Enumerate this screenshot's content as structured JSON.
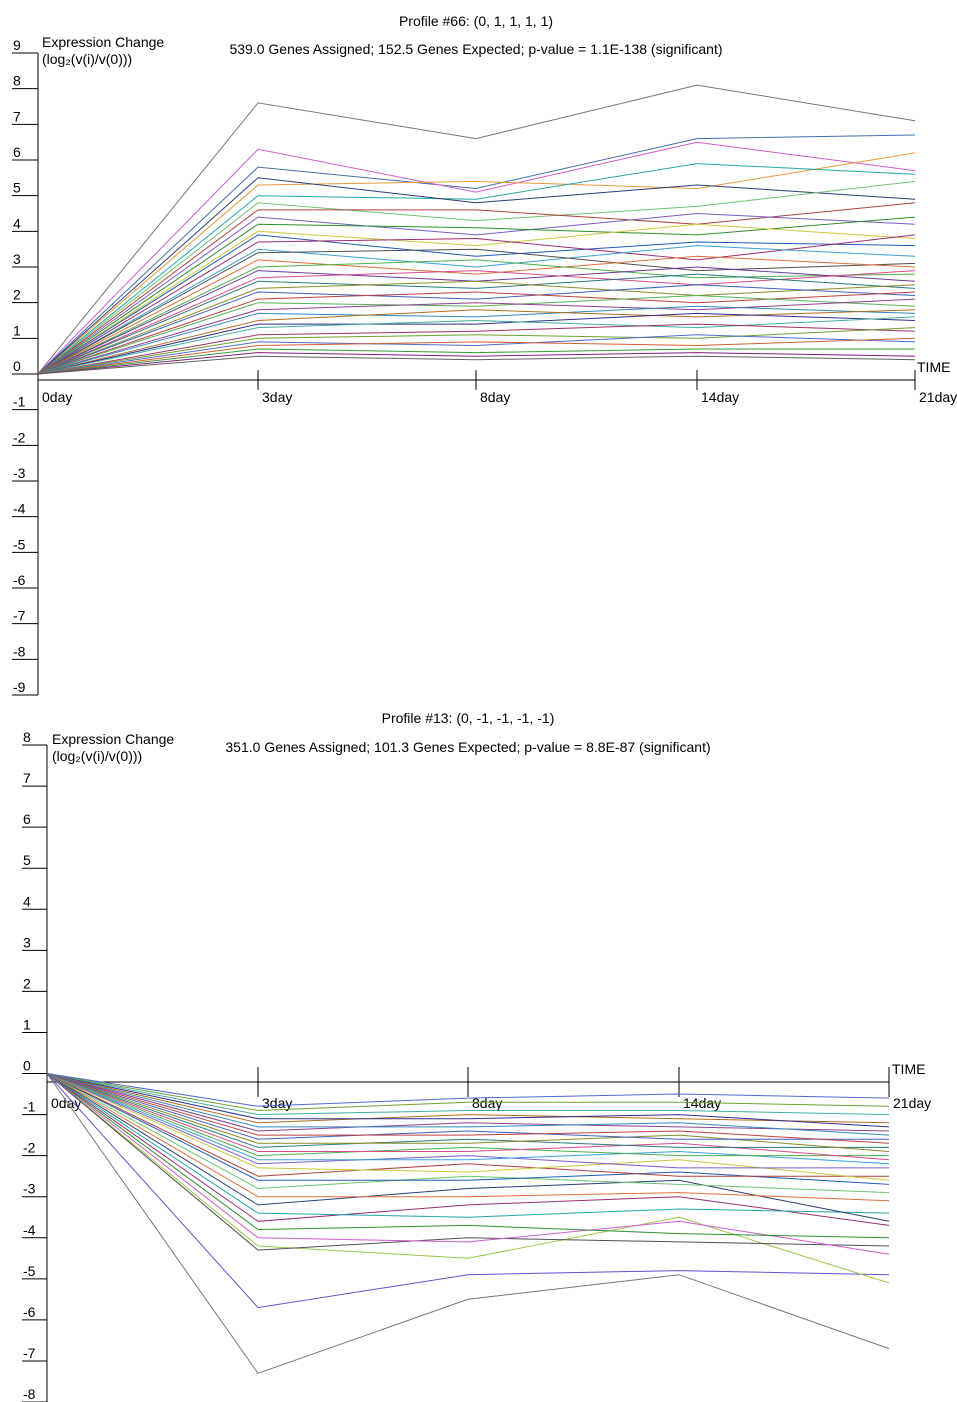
{
  "chart_data": [
    {
      "type": "line",
      "title": "Profile #66: (0, 1, 1, 1, 1)",
      "subtitle": "539.0 Genes Assigned; 152.5 Genes Expected; p-value = 1.1E-138 (significant)",
      "ylabel": "Expression Change",
      "ylabel_sub": "(log₂(v(i)/v(0)))",
      "xlabel": "TIME",
      "categories": [
        "0day",
        "3day",
        "8day",
        "14day",
        "21day"
      ],
      "ylim": [
        -9,
        9
      ],
      "yticks": [
        "-9",
        "-8",
        "-7",
        "-6",
        "-5",
        "-4",
        "-3",
        "-2",
        "-1",
        "0",
        "1",
        "2",
        "3",
        "4",
        "5",
        "6",
        "7",
        "8",
        "9"
      ],
      "profile": [
        0,
        1,
        1,
        1,
        1
      ],
      "genes_assigned": 539.0,
      "genes_expected": 152.5,
      "p_value": "1.1E-138",
      "series": [
        {
          "color": "#777777",
          "values": [
            0,
            7.6,
            6.6,
            8.1,
            7.1
          ]
        },
        {
          "color": "#3f6fae",
          "values": [
            0,
            5.8,
            5.2,
            6.6,
            6.7
          ]
        },
        {
          "color": "#d05bd0",
          "values": [
            0,
            6.3,
            5.1,
            6.5,
            5.7
          ]
        },
        {
          "color": "#e89a3a",
          "values": [
            0,
            5.3,
            5.4,
            5.2,
            6.2
          ]
        },
        {
          "color": "#22a6a6",
          "values": [
            0,
            5.0,
            4.9,
            5.9,
            5.6
          ]
        },
        {
          "color": "#2b3f7a",
          "values": [
            0,
            5.5,
            4.8,
            5.3,
            4.9
          ]
        },
        {
          "color": "#6ec46e",
          "values": [
            0,
            4.8,
            4.3,
            4.7,
            5.4
          ]
        },
        {
          "color": "#b04040",
          "values": [
            0,
            4.6,
            4.6,
            4.2,
            4.8
          ]
        },
        {
          "color": "#7a5cc8",
          "values": [
            0,
            4.4,
            3.9,
            4.5,
            4.2
          ]
        },
        {
          "color": "#2f8f2f",
          "values": [
            0,
            4.2,
            4.1,
            3.9,
            4.4
          ]
        },
        {
          "color": "#c8c83a",
          "values": [
            0,
            4.0,
            3.6,
            4.2,
            3.8
          ]
        },
        {
          "color": "#1e5bb8",
          "values": [
            0,
            3.9,
            3.3,
            3.7,
            3.6
          ]
        },
        {
          "color": "#9a2d6e",
          "values": [
            0,
            3.7,
            3.8,
            3.2,
            3.9
          ]
        },
        {
          "color": "#3aa0d8",
          "values": [
            0,
            3.5,
            3.0,
            3.6,
            3.3
          ]
        },
        {
          "color": "#505050",
          "values": [
            0,
            3.4,
            3.5,
            2.9,
            3.1
          ]
        },
        {
          "color": "#e0703a",
          "values": [
            0,
            3.2,
            2.8,
            3.3,
            3.0
          ]
        },
        {
          "color": "#4cb04c",
          "values": [
            0,
            3.0,
            3.2,
            2.7,
            2.8
          ]
        },
        {
          "color": "#6a3a9a",
          "values": [
            0,
            2.9,
            2.6,
            3.0,
            2.6
          ]
        },
        {
          "color": "#d84a8a",
          "values": [
            0,
            2.7,
            2.9,
            2.5,
            2.9
          ]
        },
        {
          "color": "#2a7a7a",
          "values": [
            0,
            2.6,
            2.4,
            2.8,
            2.4
          ]
        },
        {
          "color": "#8a8a2a",
          "values": [
            0,
            2.4,
            2.6,
            2.2,
            2.5
          ]
        },
        {
          "color": "#4060c0",
          "values": [
            0,
            2.3,
            2.1,
            2.5,
            2.2
          ]
        },
        {
          "color": "#c04040",
          "values": [
            0,
            2.1,
            2.3,
            2.0,
            2.3
          ]
        },
        {
          "color": "#5ab05a",
          "values": [
            0,
            2.0,
            1.9,
            2.2,
            1.9
          ]
        },
        {
          "color": "#904090",
          "values": [
            0,
            1.8,
            2.0,
            1.8,
            2.1
          ]
        },
        {
          "color": "#308ac0",
          "values": [
            0,
            1.7,
            1.6,
            1.9,
            1.7
          ]
        },
        {
          "color": "#b07020",
          "values": [
            0,
            1.5,
            1.8,
            1.6,
            1.8
          ]
        },
        {
          "color": "#2f2f8f",
          "values": [
            0,
            1.4,
            1.4,
            1.7,
            1.5
          ]
        },
        {
          "color": "#40b0a0",
          "values": [
            0,
            1.3,
            1.5,
            1.3,
            1.6
          ]
        },
        {
          "color": "#a03060",
          "values": [
            0,
            1.1,
            1.2,
            1.4,
            1.2
          ]
        },
        {
          "color": "#70a030",
          "values": [
            0,
            1.0,
            1.1,
            1.0,
            1.3
          ]
        },
        {
          "color": "#506ad0",
          "values": [
            0,
            0.9,
            0.8,
            1.1,
            0.9
          ]
        },
        {
          "color": "#d06030",
          "values": [
            0,
            0.8,
            0.9,
            0.8,
            1.0
          ]
        },
        {
          "color": "#3a9a3a",
          "values": [
            0,
            0.7,
            0.6,
            0.7,
            0.7
          ]
        },
        {
          "color": "#802080",
          "values": [
            0,
            0.6,
            0.5,
            0.6,
            0.5
          ]
        },
        {
          "color": "#606060",
          "values": [
            0,
            0.5,
            0.4,
            0.5,
            0.4
          ]
        }
      ]
    },
    {
      "type": "line",
      "title": "Profile #13: (0, -1, -1, -1, -1)",
      "subtitle": "351.0 Genes Assigned; 101.3 Genes Expected; p-value = 8.8E-87 (significant)",
      "ylabel": "Expression Change",
      "ylabel_sub": "(log₂(v(i)/v(0)))",
      "xlabel": "TIME",
      "categories": [
        "0day",
        "3day",
        "8day",
        "14day",
        "21day"
      ],
      "ylim": [
        -8,
        8
      ],
      "yticks": [
        "-8",
        "-7",
        "-6",
        "-5",
        "-4",
        "-3",
        "-2",
        "-1",
        "0",
        "1",
        "2",
        "3",
        "4",
        "5",
        "6",
        "7",
        "8"
      ],
      "profile": [
        0,
        -1,
        -1,
        -1,
        -1
      ],
      "genes_assigned": 351.0,
      "genes_expected": 101.3,
      "p_value": "8.8E-87",
      "series": [
        {
          "color": "#777777",
          "values": [
            0,
            -7.3,
            -5.5,
            -4.9,
            -6.7
          ]
        },
        {
          "color": "#6a4fd0",
          "values": [
            0,
            -5.7,
            -4.9,
            -4.8,
            -4.9
          ]
        },
        {
          "color": "#9ac84a",
          "values": [
            0,
            -4.2,
            -4.5,
            -3.5,
            -5.1
          ]
        },
        {
          "color": "#505050",
          "values": [
            0,
            -4.3,
            -4.0,
            -4.1,
            -4.2
          ]
        },
        {
          "color": "#d05bd0",
          "values": [
            0,
            -4.0,
            -4.1,
            -3.6,
            -4.4
          ]
        },
        {
          "color": "#2f8f2f",
          "values": [
            0,
            -3.8,
            -3.7,
            -3.9,
            -4.0
          ]
        },
        {
          "color": "#9a2d6e",
          "values": [
            0,
            -3.6,
            -3.2,
            -3.0,
            -3.7
          ]
        },
        {
          "color": "#22a6a6",
          "values": [
            0,
            -3.4,
            -3.5,
            -3.3,
            -3.4
          ]
        },
        {
          "color": "#2b3f7a",
          "values": [
            0,
            -3.2,
            -2.8,
            -2.6,
            -3.6
          ]
        },
        {
          "color": "#e0703a",
          "values": [
            0,
            -3.0,
            -3.0,
            -2.9,
            -3.1
          ]
        },
        {
          "color": "#6ec46e",
          "values": [
            0,
            -2.8,
            -2.5,
            -2.7,
            -2.9
          ]
        },
        {
          "color": "#1e5bb8",
          "values": [
            0,
            -2.6,
            -2.6,
            -2.4,
            -2.7
          ]
        },
        {
          "color": "#b04040",
          "values": [
            0,
            -2.5,
            -2.2,
            -2.5,
            -2.5
          ]
        },
        {
          "color": "#c8c83a",
          "values": [
            0,
            -2.3,
            -2.4,
            -2.1,
            -2.6
          ]
        },
        {
          "color": "#7a5cc8",
          "values": [
            0,
            -2.2,
            -2.0,
            -2.3,
            -2.3
          ]
        },
        {
          "color": "#3aa0d8",
          "values": [
            0,
            -2.1,
            -2.1,
            -1.9,
            -2.2
          ]
        },
        {
          "color": "#4cb04c",
          "values": [
            0,
            -2.0,
            -1.8,
            -2.0,
            -2.0
          ]
        },
        {
          "color": "#d84a8a",
          "values": [
            0,
            -1.9,
            -1.9,
            -1.7,
            -2.1
          ]
        },
        {
          "color": "#2a7a7a",
          "values": [
            0,
            -1.8,
            -1.6,
            -1.8,
            -1.8
          ]
        },
        {
          "color": "#8a8a2a",
          "values": [
            0,
            -1.7,
            -1.7,
            -1.5,
            -1.9
          ]
        },
        {
          "color": "#4060c0",
          "values": [
            0,
            -1.6,
            -1.4,
            -1.6,
            -1.6
          ]
        },
        {
          "color": "#c04040",
          "values": [
            0,
            -1.5,
            -1.5,
            -1.4,
            -1.7
          ]
        },
        {
          "color": "#904090",
          "values": [
            0,
            -1.4,
            -1.2,
            -1.3,
            -1.4
          ]
        },
        {
          "color": "#308ac0",
          "values": [
            0,
            -1.3,
            -1.3,
            -1.2,
            -1.5
          ]
        },
        {
          "color": "#b07020",
          "values": [
            0,
            -1.2,
            -1.0,
            -1.1,
            -1.2
          ]
        },
        {
          "color": "#2f2f8f",
          "values": [
            0,
            -1.1,
            -1.1,
            -1.0,
            -1.3
          ]
        },
        {
          "color": "#40b0a0",
          "values": [
            0,
            -1.0,
            -0.9,
            -0.9,
            -1.0
          ]
        },
        {
          "color": "#70a030",
          "values": [
            0,
            -0.9,
            -0.7,
            -0.7,
            -0.8
          ]
        },
        {
          "color": "#506ad0",
          "values": [
            0,
            -0.8,
            -0.6,
            -0.5,
            -0.6
          ]
        }
      ]
    }
  ]
}
